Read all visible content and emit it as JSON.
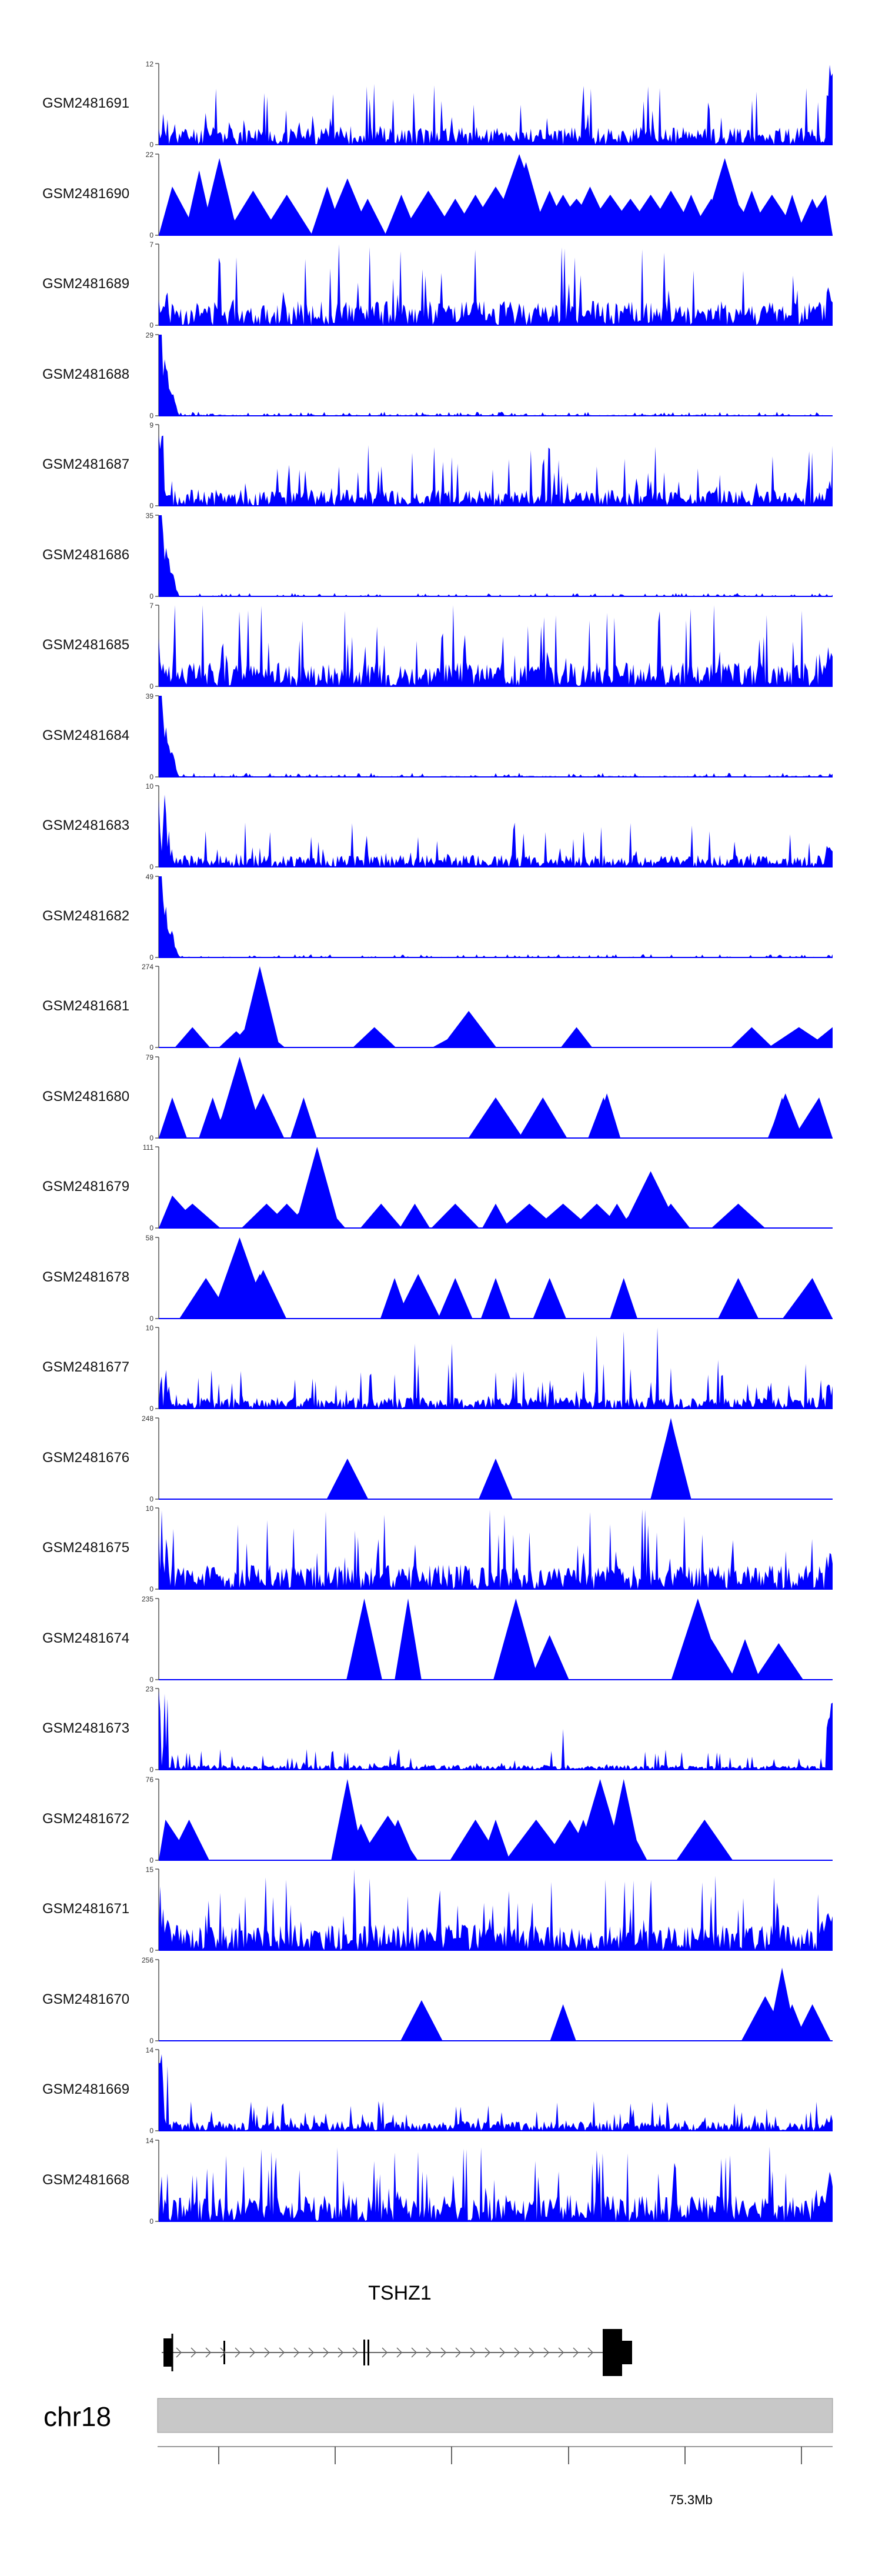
{
  "chart_data": {
    "type": "area",
    "title": "",
    "xlabel": "",
    "ylabel": "",
    "color": "#0000ff",
    "chromosome": "chr18",
    "gene": {
      "name": "TSHZ1",
      "strand": "+"
    },
    "xaxis": {
      "tick_labels": [
        "75.3Mb"
      ],
      "grid": false
    },
    "series": [
      {
        "name": "GSM2481691",
        "ymax": 12,
        "ymax_label": "12",
        "ymin_label": "0",
        "style": "dense",
        "seed": 11,
        "base": 0.22,
        "spike": 0.55,
        "left_bump": 0.4,
        "right_spike": 1.0
      },
      {
        "name": "GSM2481690",
        "ymax": 22,
        "ymax_label": "22",
        "ymin_label": "0",
        "style": "sparse",
        "seed": 12,
        "peaks": [
          [
            0.02,
            0.6
          ],
          [
            0.06,
            0.8
          ],
          [
            0.09,
            0.95
          ],
          [
            0.1,
            0.4
          ],
          [
            0.14,
            0.55
          ],
          [
            0.19,
            0.5
          ],
          [
            0.25,
            0.6
          ],
          [
            0.28,
            0.7
          ],
          [
            0.31,
            0.45
          ],
          [
            0.36,
            0.5
          ],
          [
            0.4,
            0.55
          ],
          [
            0.44,
            0.45
          ],
          [
            0.47,
            0.5
          ],
          [
            0.5,
            0.6
          ],
          [
            0.53,
            0.5
          ],
          [
            0.55,
            0.6
          ],
          [
            0.58,
            0.55
          ],
          [
            0.6,
            0.5
          ],
          [
            0.62,
            0.45
          ],
          [
            0.64,
            0.6
          ],
          [
            0.67,
            0.5
          ],
          [
            0.7,
            0.45
          ],
          [
            0.73,
            0.5
          ],
          [
            0.76,
            0.55
          ],
          [
            0.79,
            0.5
          ],
          [
            0.82,
            0.45
          ],
          [
            0.85,
            0.5
          ],
          [
            0.88,
            0.55
          ],
          [
            0.91,
            0.5
          ],
          [
            0.94,
            0.5
          ],
          [
            0.97,
            0.45
          ],
          [
            0.99,
            0.5
          ],
          [
            0.535,
            1.0
          ],
          [
            0.545,
            0.9
          ],
          [
            0.84,
            0.95
          ]
        ]
      },
      {
        "name": "GSM2481689",
        "ymax": 7,
        "ymax_label": "7",
        "ymin_label": "0",
        "style": "dense",
        "seed": 13,
        "base": 0.3,
        "spike": 0.7,
        "left_bump": 0.6,
        "right_spike": 0.5
      },
      {
        "name": "GSM2481688",
        "ymax": 29,
        "ymax_label": "29",
        "ymin_label": "0",
        "style": "decay",
        "seed": 14,
        "base": 0.03,
        "spike": 0.05
      },
      {
        "name": "GSM2481687",
        "ymax": 9,
        "ymax_label": "9",
        "ymin_label": "0",
        "style": "dense",
        "seed": 15,
        "base": 0.2,
        "spike": 0.55,
        "left_bump": 0.9,
        "right_spike": 0.4
      },
      {
        "name": "GSM2481686",
        "ymax": 35,
        "ymax_label": "35",
        "ymin_label": "0",
        "style": "decay",
        "seed": 16,
        "base": 0.02,
        "spike": 0.04
      },
      {
        "name": "GSM2481685",
        "ymax": 7,
        "ymax_label": "7",
        "ymin_label": "0",
        "style": "dense",
        "seed": 17,
        "base": 0.3,
        "spike": 0.75,
        "left_bump": 0.6,
        "right_spike": 0.5
      },
      {
        "name": "GSM2481684",
        "ymax": 39,
        "ymax_label": "39",
        "ymin_label": "0",
        "style": "decay",
        "seed": 18,
        "base": 0.03,
        "spike": 0.05
      },
      {
        "name": "GSM2481683",
        "ymax": 10,
        "ymax_label": "10",
        "ymin_label": "0",
        "style": "dense",
        "seed": 19,
        "base": 0.15,
        "spike": 0.4,
        "left_bump": 1.0,
        "right_spike": 0.3
      },
      {
        "name": "GSM2481682",
        "ymax": 49,
        "ymax_label": "49",
        "ymin_label": "0",
        "style": "decay",
        "seed": 20,
        "base": 0.02,
        "spike": 0.04
      },
      {
        "name": "GSM2481681",
        "ymax": 274,
        "ymax_label": "274",
        "ymin_label": "0",
        "style": "sparse",
        "seed": 21,
        "peaks": [
          [
            0.05,
            0.25
          ],
          [
            0.115,
            0.2
          ],
          [
            0.13,
            0.25
          ],
          [
            0.15,
            0.25
          ],
          [
            0.15,
            1.0
          ],
          [
            0.32,
            0.25
          ],
          [
            0.45,
            0.2
          ],
          [
            0.46,
            0.45
          ],
          [
            0.62,
            0.25
          ],
          [
            0.88,
            0.25
          ],
          [
            0.95,
            0.25
          ],
          [
            1.0,
            0.25
          ]
        ]
      },
      {
        "name": "GSM2481680",
        "ymax": 79,
        "ymax_label": "79",
        "ymin_label": "0",
        "style": "sparse",
        "seed": 22,
        "peaks": [
          [
            0.02,
            0.5
          ],
          [
            0.08,
            0.5
          ],
          [
            0.11,
            0.55
          ],
          [
            0.12,
            1.0
          ],
          [
            0.155,
            0.55
          ],
          [
            0.215,
            0.5
          ],
          [
            0.5,
            0.5
          ],
          [
            0.57,
            0.5
          ],
          [
            0.66,
            0.5
          ],
          [
            0.665,
            0.55
          ],
          [
            0.925,
            0.5
          ],
          [
            0.93,
            0.55
          ],
          [
            0.98,
            0.5
          ]
        ]
      },
      {
        "name": "GSM2481679",
        "ymax": 111,
        "ymax_label": "111",
        "ymin_label": "0",
        "style": "sparse",
        "seed": 23,
        "peaks": [
          [
            0.02,
            0.4
          ],
          [
            0.05,
            0.3
          ],
          [
            0.16,
            0.3
          ],
          [
            0.19,
            0.3
          ],
          [
            0.22,
            0.3
          ],
          [
            0.24,
            0.35
          ],
          [
            0.235,
            1.0
          ],
          [
            0.33,
            0.3
          ],
          [
            0.38,
            0.3
          ],
          [
            0.44,
            0.3
          ],
          [
            0.5,
            0.3
          ],
          [
            0.55,
            0.3
          ],
          [
            0.6,
            0.3
          ],
          [
            0.65,
            0.3
          ],
          [
            0.68,
            0.3
          ],
          [
            0.72,
            0.35
          ],
          [
            0.73,
            0.7
          ],
          [
            0.76,
            0.3
          ],
          [
            0.86,
            0.3
          ]
        ]
      },
      {
        "name": "GSM2481678",
        "ymax": 58,
        "ymax_label": "58",
        "ymin_label": "0",
        "style": "sparse",
        "seed": 24,
        "peaks": [
          [
            0.07,
            0.5
          ],
          [
            0.11,
            0.5
          ],
          [
            0.12,
            1.0
          ],
          [
            0.15,
            0.55
          ],
          [
            0.155,
            0.6
          ],
          [
            0.35,
            0.5
          ],
          [
            0.385,
            0.55
          ],
          [
            0.44,
            0.5
          ],
          [
            0.5,
            0.5
          ],
          [
            0.58,
            0.5
          ],
          [
            0.69,
            0.5
          ],
          [
            0.86,
            0.5
          ],
          [
            0.97,
            0.5
          ]
        ]
      },
      {
        "name": "GSM2481677",
        "ymax": 10,
        "ymax_label": "10",
        "ymin_label": "0",
        "style": "dense",
        "seed": 25,
        "base": 0.14,
        "spike": 0.35,
        "left_bump": 0.5,
        "right_spike": 0.3,
        "extras": [
          [
            0.38,
            0.8
          ],
          [
            0.385,
            0.55
          ],
          [
            0.43,
            0.55
          ],
          [
            0.435,
            0.8
          ],
          [
            0.65,
            0.9
          ],
          [
            0.66,
            0.55
          ],
          [
            0.69,
            0.95
          ],
          [
            0.74,
            1.0
          ],
          [
            0.76,
            0.5
          ],
          [
            0.83,
            0.6
          ],
          [
            0.96,
            0.55
          ]
        ]
      },
      {
        "name": "GSM2481676",
        "ymax": 248,
        "ymax_label": "248",
        "ymin_label": "0",
        "style": "sparse",
        "seed": 26,
        "peaks": [
          [
            0.28,
            0.5
          ],
          [
            0.5,
            0.5
          ],
          [
            0.76,
            1.0
          ],
          [
            0.76,
            0.98
          ]
        ]
      },
      {
        "name": "GSM2481675",
        "ymax": 10,
        "ymax_label": "10",
        "ymin_label": "0",
        "style": "dense",
        "seed": 27,
        "base": 0.3,
        "spike": 0.7,
        "left_bump": 0.7,
        "right_spike": 0.5,
        "extras": [
          [
            0.2,
            0.75
          ],
          [
            0.64,
            0.95
          ],
          [
            0.67,
            0.8
          ],
          [
            0.78,
            0.9
          ]
        ]
      },
      {
        "name": "GSM2481674",
        "ymax": 235,
        "ymax_label": "235",
        "ymin_label": "0",
        "style": "sparse",
        "seed": 27,
        "peaks": [
          [
            0.305,
            1.0
          ],
          [
            0.37,
            1.0
          ],
          [
            0.53,
            1.0
          ],
          [
            0.58,
            0.55
          ],
          [
            0.8,
            1.0
          ],
          [
            0.82,
            0.5
          ],
          [
            0.87,
            0.5
          ],
          [
            0.92,
            0.45
          ]
        ]
      },
      {
        "name": "GSM2481673",
        "ymax": 23,
        "ymax_label": "23",
        "ymin_label": "0",
        "style": "dense",
        "seed": 29,
        "base": 0.06,
        "spike": 0.2,
        "left_bump": 1.0,
        "right_spike": 1.0,
        "extras": [
          [
            0.6,
            0.5
          ]
        ]
      },
      {
        "name": "GSM2481672",
        "ymax": 76,
        "ymax_label": "76",
        "ymin_label": "0",
        "style": "sparse",
        "seed": 30,
        "peaks": [
          [
            0.01,
            0.5
          ],
          [
            0.045,
            0.5
          ],
          [
            0.28,
            1.0
          ],
          [
            0.3,
            0.45
          ],
          [
            0.34,
            0.55
          ],
          [
            0.355,
            0.5
          ],
          [
            0.47,
            0.5
          ],
          [
            0.5,
            0.5
          ],
          [
            0.56,
            0.5
          ],
          [
            0.61,
            0.5
          ],
          [
            0.63,
            0.5
          ],
          [
            0.65,
            0.5
          ],
          [
            0.69,
            0.55
          ],
          [
            0.81,
            0.5
          ],
          [
            0.655,
            1.0
          ],
          [
            0.69,
            1.0
          ]
        ]
      },
      {
        "name": "GSM2481671",
        "ymax": 15,
        "ymax_label": "15",
        "ymin_label": "0",
        "style": "dense",
        "seed": 31,
        "base": 0.32,
        "spike": 0.6,
        "left_bump": 0.7,
        "right_spike": 0.5,
        "extras": [
          [
            0.29,
            1.0
          ],
          [
            0.29,
            0.9
          ],
          [
            0.86,
            0.5
          ]
        ]
      },
      {
        "name": "GSM2481670",
        "ymax": 256,
        "ymax_label": "256",
        "ymin_label": "0",
        "style": "sparse",
        "seed": 32,
        "peaks": [
          [
            0.39,
            0.5
          ],
          [
            0.6,
            0.45
          ],
          [
            0.9,
            0.55
          ],
          [
            0.925,
            0.9
          ],
          [
            0.94,
            0.45
          ],
          [
            0.97,
            0.45
          ]
        ]
      },
      {
        "name": "GSM2481669",
        "ymax": 14,
        "ymax_label": "14",
        "ymin_label": "0",
        "style": "dense",
        "seed": 33,
        "base": 0.12,
        "spike": 0.25,
        "left_bump": 1.0,
        "right_spike": 0.2
      },
      {
        "name": "GSM2481668",
        "ymax": 14,
        "ymax_label": "14",
        "ymin_label": "0",
        "style": "dense",
        "seed": 34,
        "base": 0.33,
        "spike": 0.6,
        "left_bump": 0.6,
        "right_spike": 0.7
      }
    ]
  }
}
